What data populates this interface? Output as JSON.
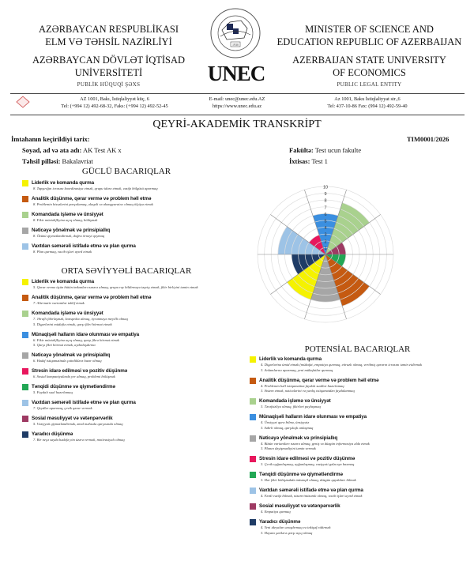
{
  "header": {
    "left": {
      "line1": "AZƏRBAYCAN RESPUBLİKASI",
      "line2": "ELM VƏ TƏHSİL NAZİRLİYİ",
      "line3": "AZƏRBAYCAN DÖVLƏT İQTİSAD",
      "line4": "UNİVERSİTETİ",
      "sub": "PUBLİK HÜQUQİ ŞƏXS"
    },
    "right": {
      "line1": "MINISTER OF SCIENCE AND",
      "line2": "EDUCATION REPUBLIC OF AZERBAIJAN",
      "line3": "AZERBAIJAN STATE UNIVERSITY",
      "line4": "OF ECONOMICS",
      "sub": "PUBLIC LEGAL ENTITY"
    },
    "logo": {
      "brand": "UNEC",
      "seal_text": "AZƏRBAYCAN DÖVLƏT İQTİSAD UNİVERSİTETİ",
      "year": "1930"
    },
    "contacts": {
      "left_addr": "AZ 1001, Bakı, İstiqlaliyyət küç, 6",
      "left_tel": "Tel: (+994 12) 492-68-32, Faks: (+994 12) 492-52-45",
      "mid_email": "E-mail: unec@unec.edu.AZ",
      "mid_web": "https://www.unec.edu.az",
      "right_addr": "Az 1001, Baku İstiqlaliyyat str.,6",
      "right_tel": "Tel: 437-10-86 Fax: (994 12) 492-59-40"
    }
  },
  "doc": {
    "title": "QEYRİ-AKADEMİK TRANSKRİPT",
    "date_label": "İmtahanın keçirildiyi tarix:",
    "date_value": "",
    "doc_no": "TIM0001/2026",
    "name_label": "Soyad, ad və ata adı:",
    "name_value": "AK Test AK x",
    "level_label": "Təhsil pilləsi:",
    "level_value": "Bakalavriat",
    "faculty_label": "Fakültə:",
    "faculty_value": "Test ucun fakulte",
    "spec_label": "İxtisas:",
    "spec_value": "Test 1"
  },
  "colors": {
    "Liderlik": "#f5f200",
    "Analitik": "#c55a11",
    "Komandada": "#a9d18e",
    "Munaqise": "#3b8fe0",
    "Neticeye": "#a6a6a6",
    "Stres": "#e8175d",
    "Tenqidi": "#22a755",
    "Vaxtdan": "#9dc3e6",
    "Sosial": "#9e3a63",
    "Yaradici": "#1f3c66"
  },
  "strong": {
    "heading": "GÜCLÜ BACARIQLAR",
    "items": [
      {
        "c": "Liderlik",
        "title": "Liderlik və komanda qurma",
        "desc": [
          "8. Tapşırığın icrasını koordinasiya etmək, qrupu idarə etmək, vəzifə bölgüsü aparmaq"
        ]
      },
      {
        "c": "Analitik",
        "title": "Analitik düşünmə, qərar vermə və problem həll etmə",
        "desc": [
          "8. Problemin hissələrini parçalamaq, əlaqəli və ahəngyaratıcı olmaq ölçüyə etmək"
        ]
      },
      {
        "c": "Komandada",
        "title": "Komandada işləmə və ünsiyyət",
        "desc": [
          "8. Fikir müxtəlifliyinə açıq olmaq, bölüşmək"
        ]
      },
      {
        "c": "Neticeye",
        "title": "Nəticəyə yönəlmək və prinsipiallıq",
        "desc": [
          "8. Özünü qiymətləndirmək, doğru örnəyi qoymaq"
        ]
      },
      {
        "c": "Vaxtdan",
        "title": "Vaxtdan səmərəli istifadə etmə və plan qurma",
        "desc": [
          "8. Plan qurmaq, vacib işləri ayırd etmək"
        ]
      }
    ]
  },
  "medium": {
    "heading": "ORTA SƏVİYYƏLİ BACARIQLAR",
    "items": [
      {
        "c": "Liderlik",
        "title": "Liderlik və komanda qurma",
        "desc": [
          "5. Qərar vermə üçün bütün imkanları nəzərə almaq, qrupu rəy bildirməyə təşviq etmək, fikir birliyini təmin etmək"
        ]
      },
      {
        "c": "Analitik",
        "title": "Analitik düşünmə, qərar vermə və problem həll etmə",
        "desc": [
          "7. Alternativ variantlar təklif etmək"
        ]
      },
      {
        "c": "Komandada",
        "title": "Komandada işləmə və ünsiyyət",
        "desc": [
          "7. Ətraflı fikirləşmək, konspektə almaq, öyrənməyə meyilli olmaq",
          "5. Digərlərini müdafiə etmək, qarşı fikri hörmət etmək"
        ]
      },
      {
        "c": "Munaqise",
        "title": "Münaqişəli halların idarə olunması və empatiya",
        "desc": [
          "6. Fikir müxtəlifliyinə açıq olmaq, qarşı fikrə hörmət etmək",
          "5. Qarşı fikri hörmət etmək, aydınlaşdırma"
        ]
      },
      {
        "c": "Neticeye",
        "title": "Nəticəyə yönəlmək və prinsipiallıq",
        "desc": [
          "6. Hədəf istiqamətində çətinliklərə hazır olmaq"
        ]
      },
      {
        "c": "Stres",
        "title": "Stresin idarə edilməsi və pozitiv düşünmə",
        "desc": [
          "6. Sosial kompaniyalarda yer almaq, problemi bölüşmək"
        ]
      },
      {
        "c": "Tenqidi",
        "title": "Tənqidi düşünmə və qiymətləndirmə",
        "desc": [
          "5. Faydalı sual hazırlamaq"
        ]
      },
      {
        "c": "Vaxtdan",
        "title": "Vaxtdan səmərəli istifadə etmə və plan qurma",
        "desc": [
          "7. Qeydlər aparmaq, çevik qərar vermək"
        ]
      },
      {
        "c": "Sosial",
        "title": "Sosial məsuliyyət və vətənpərvərlik",
        "desc": [
          "5. Vəziyyəti qiymətləndirmək, əməl məhsulu qarşısında olmaq"
        ]
      },
      {
        "c": "Yaradici",
        "title": "Yaradıcı düşünmə",
        "desc": [
          "7. Bir neçə sayda hədəfə yön üzərə vermək, motivasiyalı olmaq"
        ]
      }
    ]
  },
  "potential": {
    "heading": "POTENSİAL BACARIQLAR",
    "items": [
      {
        "c": "Liderlik",
        "title": "Liderlik və komanda qurma",
        "desc": [
          "4. Digərlərinə ümid etmək (mükafat, empatiya qurmaq, etirazlı olmaq, verilmiş qərarın icrasını təmin etdirmək",
          "3. Anlamlarını aparmaq, yeni mükafatlar qurmaq"
        ]
      },
      {
        "c": "Analitik",
        "title": "Analitik düşünmə, qərar vermə və problem həll etmə",
        "desc": [
          "4. Problemin həll istiqamətinə faydalı suallar hazırlamaq",
          "3. Sistem etmək, nəticələrini və yanlış istiqamətdən faydalanmaq"
        ]
      },
      {
        "c": "Komandada",
        "title": "Komandada işləmə və ünsiyyət",
        "desc": [
          "3. Tərəfsizliyə olmaq, fikirləri paylaşmaq"
        ]
      },
      {
        "c": "Munaqise",
        "title": "Münaqişəli halların idarə olunması və empatiya",
        "desc": [
          "4. Ünsiyyət qura bilmə, ünsiyyətə",
          "3. Səbrli olmaq, qarşılıqlı anlaşmaq"
        ]
      },
      {
        "c": "Neticeye",
        "title": "Nəticəyə yönəlmək və prinsipiallıq",
        "desc": [
          "4. Bütün variantları nəzərə almaq, geniş və düzgün informasiya əldə etmək",
          "3. Planın dəyişməzliyini təmin vermək"
        ]
      },
      {
        "c": "Stres",
        "title": "Stresin idarə edilməsi və pozitiv düşünmə",
        "desc": [
          "3. Çevik uyğunlaşmaq, uyğunlaşmaq, vəziyyəti gələcəyə baxmaq"
        ]
      },
      {
        "c": "Tenqidi",
        "title": "Tənqidi düşünmə və qiymətləndirmə",
        "desc": [
          "3. Hər fikri bölüşməkdə müstəqil olmaq, düzgün qaydaları bilmək"
        ]
      },
      {
        "c": "Vaxtdan",
        "title": "Vaxtdan səmərəli istifadə etmə və plan qurma",
        "desc": [
          "4. Fərdi vəzifə bilmək, nizam-intizamlı olmaq, vacib işləri ayırd etmək"
        ]
      },
      {
        "c": "Sosial",
        "title": "Sosial məsuliyyət və vətənpərvərlik",
        "desc": [
          "4. Empatiya qurmaq"
        ]
      },
      {
        "c": "Yaradici",
        "title": "Yaradıcı düşünmə",
        "desc": [
          "4. Yeni ideyaları araşdırmaq və inkişaf etdirmək",
          "3. Həyata şərtlərə qarşı açıq olmaq"
        ]
      }
    ]
  },
  "chart_data": {
    "type": "polar-area",
    "rlim": [
      0,
      10
    ],
    "ticks": [
      "1",
      "2",
      "3",
      "4",
      "5",
      "6",
      "7",
      "8",
      "9",
      "10"
    ],
    "grid": true,
    "direction": "clockwise from top",
    "categories": [
      "Münaqişəli halların idarə olunması və empatiya",
      "Komandada işləmə və ünsiyyət",
      "Sosial məsuliyyət və vətənpərvərlik",
      "Tənqidi düşünmə və qiymətləndirmə",
      "Analitik düşünmə, qərar vermə və problem həll etmə",
      "Nəticəyə yönəlmək və prinsipiallıq",
      "Liderlik və komanda qurma",
      "Yaradıcı düşünmə",
      "Vaxtdan səmərəli istifadə etmə və plan qurma",
      "Stresin idarə edilməsi və pozitiv düşünmə"
    ],
    "color_keys": [
      "Munaqise",
      "Komandada",
      "Sosial",
      "Tenqidi",
      "Analitik",
      "Neticeye",
      "Liderlik",
      "Yaradici",
      "Vaxtdan",
      "Stres"
    ],
    "values": [
      6,
      8,
      3,
      3,
      8,
      7,
      7,
      5,
      7,
      3
    ]
  }
}
